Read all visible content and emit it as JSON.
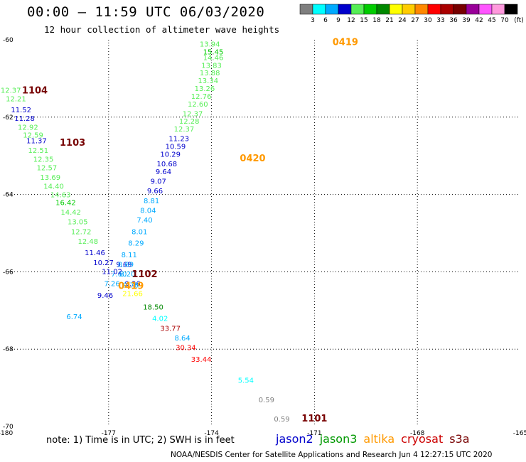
{
  "header": {
    "title": "00:00 – 11:59 UTC 06/03/2020",
    "subtitle": "12 hour collection of altimeter wave heights"
  },
  "colorbar": {
    "colors": [
      "#7f7f7f",
      "#00ffff",
      "#00aaff",
      "#0000cc",
      "#55ee55",
      "#00cc00",
      "#008800",
      "#ffff00",
      "#ffcc00",
      "#ff8800",
      "#ff0000",
      "#aa0000",
      "#770000",
      "#990099",
      "#ff55ff",
      "#ff99dd",
      "#000000"
    ],
    "labels": [
      "3",
      "6",
      "9",
      "12",
      "15",
      "18",
      "21",
      "24",
      "27",
      "30",
      "33",
      "36",
      "39",
      "42",
      "45",
      "70",
      "(ft)"
    ]
  },
  "chart_data": {
    "type": "scatter",
    "title": "00:00 – 11:59 UTC 06/03/2020",
    "subtitle": "12 hour collection of altimeter wave heights",
    "xlim": [
      -180,
      -165
    ],
    "ylim": [
      -70,
      -60
    ],
    "xticks": [
      "-180",
      "-177",
      "-174",
      "-171",
      "-168",
      "-165"
    ],
    "yticks": [
      "-60",
      "-62",
      "-64",
      "-66",
      "-68",
      "-70"
    ],
    "grid": true,
    "units": "ft",
    "points": [
      {
        "x": -174.05,
        "y": -60.1,
        "v": "13.94",
        "c": "#55ee55"
      },
      {
        "x": -173.95,
        "y": -60.3,
        "v": "15.45",
        "c": "#00cc00"
      },
      {
        "x": -173.95,
        "y": -60.45,
        "v": "14.46",
        "c": "#55ee55"
      },
      {
        "x": -174.0,
        "y": -60.65,
        "v": "13.83",
        "c": "#55ee55"
      },
      {
        "x": -174.05,
        "y": -60.85,
        "v": "13.88",
        "c": "#55ee55"
      },
      {
        "x": -174.1,
        "y": -61.05,
        "v": "13.34",
        "c": "#55ee55"
      },
      {
        "x": -174.2,
        "y": -61.25,
        "v": "13.26",
        "c": "#55ee55"
      },
      {
        "x": -174.3,
        "y": -61.45,
        "v": "12.76",
        "c": "#55ee55"
      },
      {
        "x": -174.4,
        "y": -61.65,
        "v": "12.60",
        "c": "#55ee55"
      },
      {
        "x": -174.55,
        "y": -61.9,
        "v": "12.37",
        "c": "#55ee55"
      },
      {
        "x": -174.65,
        "y": -62.1,
        "v": "12.28",
        "c": "#55ee55"
      },
      {
        "x": -174.8,
        "y": -62.3,
        "v": "12.37",
        "c": "#55ee55"
      },
      {
        "x": -174.95,
        "y": -62.55,
        "v": "11.23",
        "c": "#0000cc"
      },
      {
        "x": -175.05,
        "y": -62.75,
        "v": "10.59",
        "c": "#0000cc"
      },
      {
        "x": -175.2,
        "y": -62.95,
        "v": "10.29",
        "c": "#0000cc"
      },
      {
        "x": -175.3,
        "y": -63.2,
        "v": "10.68",
        "c": "#0000cc"
      },
      {
        "x": -175.4,
        "y": -63.4,
        "v": "9.64",
        "c": "#0000cc"
      },
      {
        "x": -175.55,
        "y": -63.65,
        "v": "9.07",
        "c": "#0000cc"
      },
      {
        "x": -175.65,
        "y": -63.9,
        "v": "9.66",
        "c": "#0000cc"
      },
      {
        "x": -175.75,
        "y": -64.15,
        "v": "8.81",
        "c": "#00aaff"
      },
      {
        "x": -175.85,
        "y": -64.4,
        "v": "8.04",
        "c": "#00aaff"
      },
      {
        "x": -175.95,
        "y": -64.65,
        "v": "7.40",
        "c": "#00aaff"
      },
      {
        "x": -176.1,
        "y": -64.95,
        "v": "8.01",
        "c": "#00aaff"
      },
      {
        "x": -176.2,
        "y": -65.25,
        "v": "8.29",
        "c": "#00aaff"
      },
      {
        "x": -176.4,
        "y": -65.55,
        "v": "8.11",
        "c": "#00aaff"
      },
      {
        "x": -176.55,
        "y": -65.8,
        "v": "9.69",
        "c": "#0000cc"
      },
      {
        "x": -176.5,
        "y": -65.8,
        "v": "8.69",
        "c": "#00aaff"
      },
      {
        "x": -176.45,
        "y": -66.05,
        "v": "8.20",
        "c": "#00aaff"
      },
      {
        "x": -176.7,
        "y": -66.05,
        "v": "7.60",
        "c": "#00aaff"
      },
      {
        "x": -176.3,
        "y": -66.3,
        "v": "9.36",
        "c": "#0000cc"
      },
      {
        "x": -176.35,
        "y": -66.33,
        "v": "9.78",
        "c": "#00aaff"
      },
      {
        "x": -176.9,
        "y": -66.3,
        "v": "7.26",
        "c": "#00aaff"
      },
      {
        "x": -177.1,
        "y": -66.6,
        "v": "9.46",
        "c": "#0000cc"
      },
      {
        "x": -176.3,
        "y": -66.55,
        "v": "21.66",
        "c": "#ffff00"
      },
      {
        "x": -175.7,
        "y": -66.9,
        "v": "18.50",
        "c": "#008800"
      },
      {
        "x": -175.5,
        "y": -67.2,
        "v": "4.02",
        "c": "#00ffff"
      },
      {
        "x": -175.2,
        "y": -67.45,
        "v": "33.77",
        "c": "#aa0000"
      },
      {
        "x": -174.85,
        "y": -67.7,
        "v": "8.64",
        "c": "#00aaff"
      },
      {
        "x": -174.75,
        "y": -67.95,
        "v": "30.34",
        "c": "#ff0000"
      },
      {
        "x": -174.3,
        "y": -68.25,
        "v": "33.44",
        "c": "#ff0000"
      },
      {
        "x": -178.0,
        "y": -67.15,
        "v": "6.74",
        "c": "#00aaff"
      },
      {
        "x": -173.0,
        "y": -68.8,
        "v": "5.54",
        "c": "#00ffff"
      },
      {
        "x": -172.4,
        "y": -69.3,
        "v": "0.59",
        "c": "#7f7f7f"
      },
      {
        "x": -171.95,
        "y": -69.8,
        "v": "0.59",
        "c": "#7f7f7f"
      },
      {
        "x": -179.85,
        "y": -61.3,
        "v": "12.37",
        "c": "#55ee55"
      },
      {
        "x": -179.7,
        "y": -61.52,
        "v": "12.21",
        "c": "#55ee55"
      },
      {
        "x": -179.55,
        "y": -61.8,
        "v": "11.52",
        "c": "#0000cc"
      },
      {
        "x": -179.45,
        "y": -62.02,
        "v": "11.28",
        "c": "#0000cc"
      },
      {
        "x": -179.35,
        "y": -62.25,
        "v": "12.92",
        "c": "#55ee55"
      },
      {
        "x": -179.2,
        "y": -62.45,
        "v": "12.59",
        "c": "#55ee55"
      },
      {
        "x": -179.1,
        "y": -62.6,
        "v": "11.37",
        "c": "#0000cc"
      },
      {
        "x": -179.05,
        "y": -62.85,
        "v": "12.51",
        "c": "#55ee55"
      },
      {
        "x": -178.9,
        "y": -63.08,
        "v": "12.35",
        "c": "#55ee55"
      },
      {
        "x": -178.8,
        "y": -63.3,
        "v": "12.57",
        "c": "#55ee55"
      },
      {
        "x": -178.7,
        "y": -63.55,
        "v": "13.69",
        "c": "#55ee55"
      },
      {
        "x": -178.6,
        "y": -63.78,
        "v": "14.40",
        "c": "#55ee55"
      },
      {
        "x": -178.4,
        "y": -64.0,
        "v": "14.63",
        "c": "#55ee55"
      },
      {
        "x": -178.25,
        "y": -64.2,
        "v": "16.42",
        "c": "#00cc00"
      },
      {
        "x": -178.1,
        "y": -64.45,
        "v": "14.42",
        "c": "#55ee55"
      },
      {
        "x": -177.9,
        "y": -64.7,
        "v": "13.05",
        "c": "#55ee55"
      },
      {
        "x": -177.8,
        "y": -64.95,
        "v": "12.72",
        "c": "#55ee55"
      },
      {
        "x": -177.6,
        "y": -65.2,
        "v": "12.48",
        "c": "#55ee55"
      },
      {
        "x": -177.4,
        "y": -65.5,
        "v": "11.46",
        "c": "#0000cc"
      },
      {
        "x": -177.15,
        "y": -65.75,
        "v": "10.27",
        "c": "#0000cc"
      },
      {
        "x": -176.9,
        "y": -65.98,
        "v": "11.02",
        "c": "#0000cc"
      }
    ],
    "passes": [
      {
        "id": "0419",
        "x": -170.1,
        "y": -60.05,
        "c": "#ff9900"
      },
      {
        "id": "1104",
        "x": -179.15,
        "y": -61.3,
        "c": "#770000"
      },
      {
        "id": "1103",
        "x": -178.05,
        "y": -62.65,
        "c": "#770000"
      },
      {
        "id": "0420",
        "x": -172.8,
        "y": -63.05,
        "c": "#ff9900"
      },
      {
        "id": "1102",
        "x": -175.95,
        "y": -66.05,
        "c": "#770000"
      },
      {
        "id": "0419",
        "x": -176.35,
        "y": -66.35,
        "c": "#ff9900"
      },
      {
        "id": "1101",
        "x": -171.0,
        "y": -69.78,
        "c": "#770000"
      }
    ]
  },
  "footer": {
    "note": "note: 1) Time is in UTC; 2) SWH is in feet",
    "satellites": [
      {
        "name": "jason2",
        "color": "#0000cc"
      },
      {
        "name": "jason3",
        "color": "#009900"
      },
      {
        "name": "altika",
        "color": "#ff9900"
      },
      {
        "name": "cryosat",
        "color": "#cc0000"
      },
      {
        "name": "s3a",
        "color": "#770000"
      }
    ],
    "credit": "NOAA/NESDIS Center for Satellite Applications and Research    Jun  4 12:27:15 UTC 2020"
  }
}
